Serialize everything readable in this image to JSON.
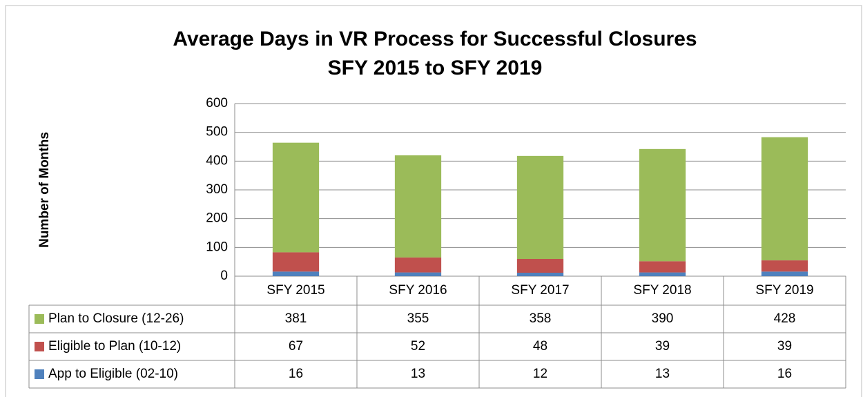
{
  "chart_data": {
    "type": "stacked_bar",
    "title": "Average Days in VR Process for Successful Closures",
    "subtitle": "SFY 2015 to SFY 2019",
    "y_label": "Number of Months",
    "categories": [
      "SFY 2015",
      "SFY 2016",
      "SFY 2017",
      "SFY 2018",
      "SFY 2019"
    ],
    "series": [
      {
        "name": "App to Eligible (02-10)",
        "color": "#4f81bd",
        "values": [
          16,
          13,
          12,
          13,
          16
        ]
      },
      {
        "name": "Eligible to Plan (10-12)",
        "color": "#c0504d",
        "values": [
          67,
          52,
          48,
          39,
          39
        ]
      },
      {
        "name": "Plan to Closure (12-26)",
        "color": "#9bbb59",
        "values": [
          381,
          355,
          358,
          390,
          428
        ]
      }
    ],
    "ylim": [
      0,
      600
    ],
    "yticks": [
      0,
      100,
      200,
      300,
      400,
      500,
      600
    ],
    "grid": true,
    "data_table": true
  }
}
